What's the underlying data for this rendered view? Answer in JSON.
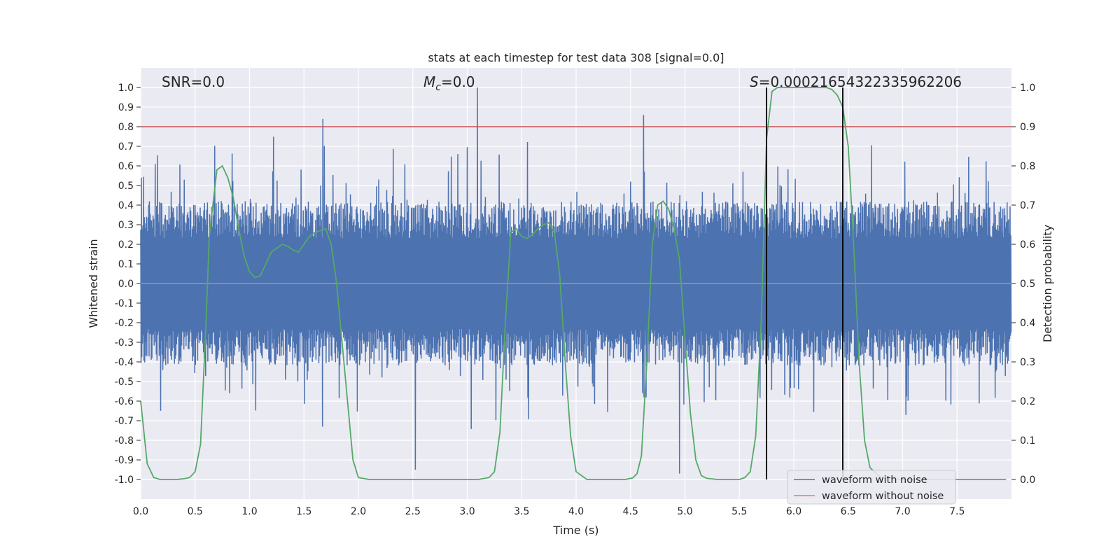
{
  "chart_data": {
    "type": "line",
    "title": "stats at each timestep for test data 308 [signal=0.0]",
    "xlabel": "Time (s)",
    "ylabel": "Whitened strain",
    "ylabel_right": "Detection probability",
    "xlim": [
      0.0,
      8.0
    ],
    "ylim": [
      -1.1,
      1.1
    ],
    "ylim_right": [
      -0.05,
      1.05
    ],
    "xticks": [
      "0.0",
      "0.5",
      "1.0",
      "1.5",
      "2.0",
      "2.5",
      "3.0",
      "3.5",
      "4.0",
      "4.5",
      "5.0",
      "5.5",
      "6.0",
      "6.5",
      "7.0",
      "7.5"
    ],
    "yticks": [
      "1.0",
      "0.9",
      "0.8",
      "0.7",
      "0.6",
      "0.5",
      "0.4",
      "0.3",
      "0.2",
      "0.1",
      "0.0",
      "-0.1",
      "-0.2",
      "-0.3",
      "-0.4",
      "-0.5",
      "-0.6",
      "-0.7",
      "-0.8",
      "-0.9",
      "-1.0"
    ],
    "yticks_right": [
      "1.0",
      "0.9",
      "0.8",
      "0.7",
      "0.6",
      "0.5",
      "0.4",
      "0.3",
      "0.2",
      "0.1",
      "0.0"
    ],
    "grid": true,
    "annotations": {
      "snr": "SNR=0.0",
      "mc_symbol": "M",
      "mc_sub": "c",
      "mc_value": "=0.0",
      "s_symbol": "S",
      "s_value": "=0.00021654322335962206"
    },
    "threshold_right": 0.9,
    "vertical_lines_x": [
      5.75,
      6.45
    ],
    "series": [
      {
        "name": "waveform with noise",
        "color": "#4c72b0",
        "axis": "left",
        "generated": {
          "seed": 308,
          "n": 2400,
          "envelope": 0.42,
          "spike_extra": 0.35,
          "peaks": [
            [
              3.09,
              1.0
            ],
            [
              4.62,
              0.86
            ],
            [
              1.67,
              0.84
            ],
            [
              4.95,
              -0.97
            ],
            [
              2.52,
              -0.95
            ]
          ]
        }
      },
      {
        "name": "waveform without noise",
        "color": "#dd8452",
        "axis": "left",
        "x": [
          0.0,
          8.0
        ],
        "values": [
          0.0,
          0.0
        ]
      },
      {
        "name": "detection probability",
        "color": "#55a868",
        "axis": "right",
        "x": [
          0.0,
          0.06,
          0.12,
          0.18,
          0.25,
          0.33,
          0.4,
          0.45,
          0.5,
          0.55,
          0.6,
          0.63,
          0.7,
          0.75,
          0.8,
          0.85,
          0.9,
          0.95,
          1.0,
          1.05,
          1.1,
          1.15,
          1.2,
          1.25,
          1.3,
          1.35,
          1.4,
          1.45,
          1.5,
          1.55,
          1.6,
          1.65,
          1.7,
          1.75,
          1.8,
          1.85,
          1.9,
          1.95,
          2.0,
          2.1,
          2.3,
          2.6,
          2.9,
          3.1,
          3.2,
          3.25,
          3.3,
          3.35,
          3.4,
          3.45,
          3.5,
          3.55,
          3.6,
          3.65,
          3.7,
          3.75,
          3.8,
          3.85,
          3.9,
          3.95,
          4.0,
          4.1,
          4.3,
          4.45,
          4.52,
          4.56,
          4.6,
          4.65,
          4.7,
          4.75,
          4.8,
          4.85,
          4.9,
          4.95,
          5.0,
          5.05,
          5.1,
          5.15,
          5.2,
          5.3,
          5.4,
          5.5,
          5.55,
          5.6,
          5.65,
          5.7,
          5.75,
          5.8,
          5.85,
          5.9,
          6.0,
          6.1,
          6.2,
          6.3,
          6.35,
          6.4,
          6.45,
          6.5,
          6.55,
          6.6,
          6.65,
          6.7,
          6.8,
          7.0,
          7.5,
          7.95
        ],
        "values": [
          0.2,
          0.04,
          0.005,
          0.0,
          0.0,
          0.0,
          0.002,
          0.005,
          0.02,
          0.09,
          0.4,
          0.62,
          0.79,
          0.8,
          0.77,
          0.72,
          0.64,
          0.57,
          0.53,
          0.515,
          0.52,
          0.55,
          0.58,
          0.59,
          0.6,
          0.595,
          0.585,
          0.58,
          0.6,
          0.62,
          0.63,
          0.635,
          0.64,
          0.6,
          0.5,
          0.35,
          0.2,
          0.05,
          0.005,
          0.0,
          0.0,
          0.0,
          0.0,
          0.0,
          0.005,
          0.02,
          0.12,
          0.4,
          0.63,
          0.64,
          0.62,
          0.615,
          0.625,
          0.64,
          0.65,
          0.655,
          0.63,
          0.52,
          0.3,
          0.11,
          0.02,
          0.0,
          0.0,
          0.0,
          0.004,
          0.015,
          0.06,
          0.3,
          0.6,
          0.7,
          0.71,
          0.69,
          0.64,
          0.56,
          0.36,
          0.17,
          0.05,
          0.01,
          0.003,
          0.0,
          0.0,
          0.0,
          0.005,
          0.02,
          0.11,
          0.4,
          0.87,
          0.99,
          1.0,
          1.0,
          1.0,
          1.0,
          1.0,
          1.0,
          0.995,
          0.98,
          0.95,
          0.85,
          0.6,
          0.3,
          0.1,
          0.03,
          0.005,
          0.0,
          0.0,
          0.0
        ]
      }
    ],
    "legend": {
      "placement": "lower-right",
      "entries": [
        {
          "label": "waveform with noise",
          "color": "#4c72b0"
        },
        {
          "label": "waveform without noise",
          "color": "#dd8452"
        }
      ]
    },
    "colors": {
      "plot_background": "#eaeaf2",
      "grid": "#ffffff",
      "threshold": "#c44e52",
      "vertical_line": "#000000"
    }
  }
}
